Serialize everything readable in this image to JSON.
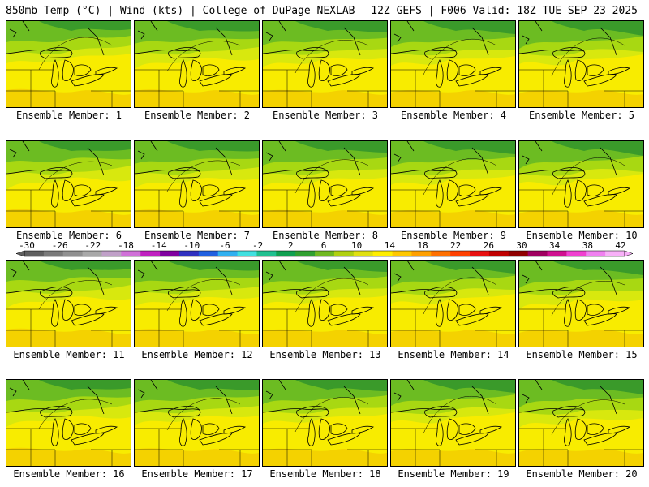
{
  "header": {
    "left": "850mb Temp (°C) | Wind (kts) | College of DuPage NEXLAB",
    "right": "12Z GEFS | F006 Valid: 18Z TUE SEP 23 2025"
  },
  "member_label_prefix": "Ensemble Member: ",
  "members": [
    1,
    2,
    3,
    4,
    5,
    6,
    7,
    8,
    9,
    10,
    11,
    12,
    13,
    14,
    15,
    16,
    17,
    18,
    19,
    20
  ],
  "colorbar": {
    "labels": [
      "-30",
      "-26",
      "-22",
      "-18",
      "-14",
      "-10",
      "-6",
      "-2",
      "2",
      "6",
      "10",
      "14",
      "18",
      "22",
      "26",
      "30",
      "34",
      "38",
      "42"
    ],
    "colors": [
      "#5f5f5f",
      "#7a7a7a",
      "#909090",
      "#a8a8a8",
      "#c0a0c8",
      "#d070d8",
      "#c020c0",
      "#8000a0",
      "#3030c0",
      "#2060e0",
      "#30b0f0",
      "#40e0e0",
      "#20c090",
      "#10a050",
      "#30a030",
      "#70b820",
      "#b0d010",
      "#e0e010",
      "#ffee00",
      "#ffc800",
      "#ffa000",
      "#ff7000",
      "#ff4000",
      "#e81010",
      "#c00000",
      "#900000",
      "#a00060",
      "#d01090",
      "#f040d0",
      "#f080f0",
      "#f8b0f8"
    ]
  },
  "map_colors": {
    "dark_green": "#3a9a2a",
    "mid_green": "#6cbc22",
    "light_green": "#a8d812",
    "yellow_green": "#d8e80e",
    "yellow": "#f8ec00",
    "gold": "#f4d200"
  }
}
